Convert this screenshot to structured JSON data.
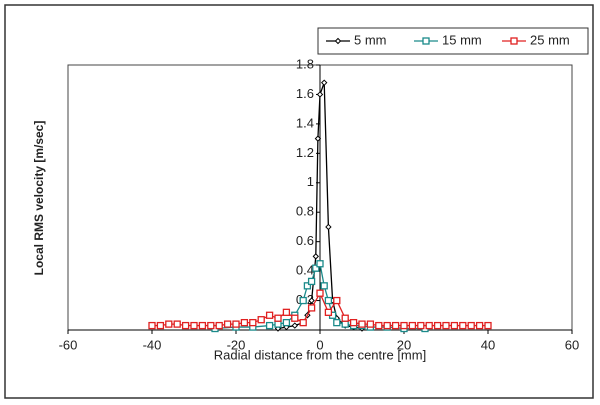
{
  "chart_data": {
    "type": "line",
    "x_label": "Radial distance from the centre [mm]",
    "y_label": "Local RMS velocity [m/sec]",
    "xlim": [
      -60,
      60
    ],
    "xticks": [
      -60,
      -40,
      -20,
      0,
      20,
      40,
      60
    ],
    "ylim": [
      0,
      1.8
    ],
    "yticks": [
      0.2,
      0.4,
      0.6,
      0.8,
      1,
      1.2,
      1.4,
      1.6,
      1.8
    ],
    "legend": "upper right",
    "series": [
      {
        "name": "5 mm",
        "color": "#000000",
        "marker": "diamond",
        "x": [
          -10,
          -8,
          -6,
          -4,
          -3,
          -2,
          -1,
          -0.5,
          0,
          1,
          2,
          3,
          4,
          6,
          8,
          10
        ],
        "values": [
          0.01,
          0.02,
          0.03,
          0.05,
          0.1,
          0.2,
          0.5,
          1.3,
          1.6,
          1.68,
          0.7,
          0.2,
          0.08,
          0.03,
          0.02,
          0.01
        ]
      },
      {
        "name": "15 mm",
        "color": "#1a8a8a",
        "marker": "square",
        "x": [
          -25,
          -20,
          -16,
          -12,
          -10,
          -8,
          -6,
          -4,
          -3,
          -2,
          -1,
          0,
          1,
          2,
          3,
          4,
          6,
          8,
          10,
          12,
          16,
          20,
          25
        ],
        "values": [
          0.01,
          0.02,
          0.02,
          0.03,
          0.04,
          0.05,
          0.1,
          0.2,
          0.3,
          0.33,
          0.42,
          0.45,
          0.3,
          0.2,
          0.1,
          0.05,
          0.04,
          0.03,
          0.03,
          0.02,
          0.02,
          0.01,
          0.01
        ]
      },
      {
        "name": "25 mm",
        "color": "#e02020",
        "marker": "square",
        "x": [
          -40,
          -38,
          -36,
          -34,
          -32,
          -30,
          -28,
          -26,
          -24,
          -22,
          -20,
          -18,
          -16,
          -14,
          -12,
          -10,
          -8,
          -6,
          -4,
          -2,
          0,
          2,
          4,
          6,
          8,
          10,
          12,
          14,
          16,
          18,
          20,
          22,
          24,
          26,
          28,
          30,
          32,
          34,
          36,
          38,
          40
        ],
        "values": [
          0.03,
          0.03,
          0.04,
          0.04,
          0.03,
          0.03,
          0.03,
          0.03,
          0.03,
          0.04,
          0.04,
          0.05,
          0.05,
          0.07,
          0.1,
          0.08,
          0.12,
          0.08,
          0.05,
          0.15,
          0.25,
          0.12,
          0.2,
          0.08,
          0.05,
          0.04,
          0.04,
          0.03,
          0.03,
          0.03,
          0.03,
          0.03,
          0.03,
          0.03,
          0.03,
          0.03,
          0.03,
          0.03,
          0.03,
          0.03,
          0.03
        ]
      }
    ]
  }
}
